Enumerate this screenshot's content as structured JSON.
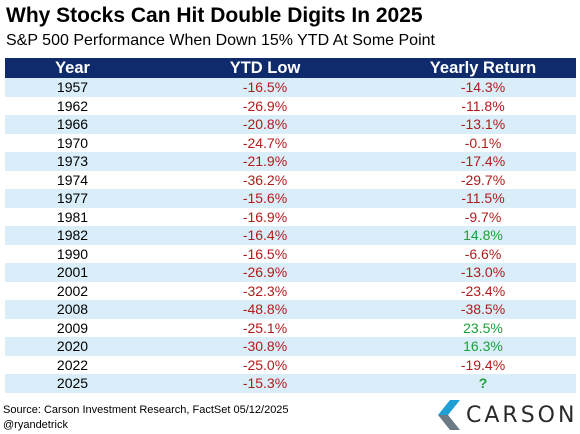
{
  "title": "Why Stocks Can Hit Double Digits In 2025",
  "subtitle": "S&P 500 Performance When Down 15% YTD At Some Point",
  "columns": {
    "year": "Year",
    "low": "YTD Low",
    "ret": "Yearly Return"
  },
  "rows": [
    {
      "year": "1957",
      "low": "-16.5%",
      "ret": "-14.3%",
      "ret_kind": "neg"
    },
    {
      "year": "1962",
      "low": "-26.9%",
      "ret": "-11.8%",
      "ret_kind": "neg"
    },
    {
      "year": "1966",
      "low": "-20.8%",
      "ret": "-13.1%",
      "ret_kind": "neg"
    },
    {
      "year": "1970",
      "low": "-24.7%",
      "ret": "-0.1%",
      "ret_kind": "neg"
    },
    {
      "year": "1973",
      "low": "-21.9%",
      "ret": "-17.4%",
      "ret_kind": "neg"
    },
    {
      "year": "1974",
      "low": "-36.2%",
      "ret": "-29.7%",
      "ret_kind": "neg"
    },
    {
      "year": "1977",
      "low": "-15.6%",
      "ret": "-11.5%",
      "ret_kind": "neg"
    },
    {
      "year": "1981",
      "low": "-16.9%",
      "ret": "-9.7%",
      "ret_kind": "neg"
    },
    {
      "year": "1982",
      "low": "-16.4%",
      "ret": "14.8%",
      "ret_kind": "pos"
    },
    {
      "year": "1990",
      "low": "-16.5%",
      "ret": "-6.6%",
      "ret_kind": "neg"
    },
    {
      "year": "2001",
      "low": "-26.9%",
      "ret": "-13.0%",
      "ret_kind": "neg"
    },
    {
      "year": "2002",
      "low": "-32.3%",
      "ret": "-23.4%",
      "ret_kind": "neg"
    },
    {
      "year": "2008",
      "low": "-48.8%",
      "ret": "-38.5%",
      "ret_kind": "neg"
    },
    {
      "year": "2009",
      "low": "-25.1%",
      "ret": "23.5%",
      "ret_kind": "pos"
    },
    {
      "year": "2020",
      "low": "-30.8%",
      "ret": "16.3%",
      "ret_kind": "pos"
    },
    {
      "year": "2022",
      "low": "-25.0%",
      "ret": "-19.4%",
      "ret_kind": "neg"
    },
    {
      "year": "2025",
      "low": "-15.3%",
      "ret": "?",
      "ret_kind": "unk"
    }
  ],
  "source": "Source: Carson Investment Research, FactSet 05/12/2025",
  "handle": "@ryandetrick",
  "logo": {
    "text": "CARSON",
    "icon": "carson-logo-icon",
    "colors": [
      "#1e9fd6",
      "#6c7a86"
    ]
  },
  "colors": {
    "header_bg": "#0f2b6b",
    "row_alt": "#d9eef9",
    "negative": "#b21b1b",
    "positive": "#1e9e3a"
  }
}
